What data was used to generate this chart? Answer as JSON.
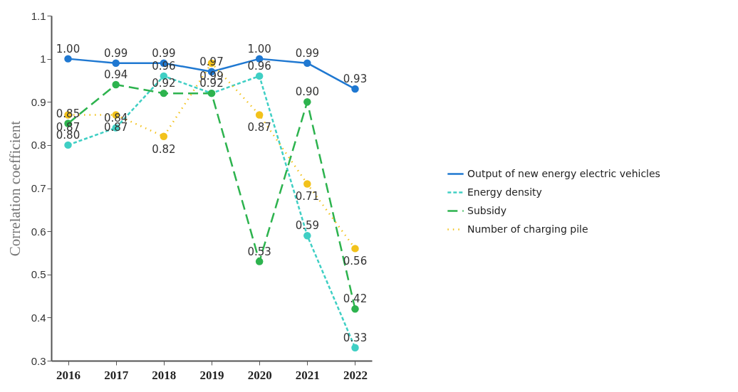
{
  "chart_data": {
    "type": "line",
    "ylabel": "Correlation coefficient",
    "categories": [
      "2016",
      "2017",
      "2018",
      "2019",
      "2020",
      "2021",
      "2022"
    ],
    "series": [
      {
        "name": "Output of new energy electric vehicles",
        "color": "#1f78d1",
        "line_style": "solid",
        "values": [
          1.0,
          0.99,
          0.99,
          0.97,
          1.0,
          0.99,
          0.93
        ],
        "value_labels": [
          "1.00",
          "0.99",
          "0.99",
          "0.97",
          "1.00",
          "0.99",
          "0.93"
        ]
      },
      {
        "name": "Energy density",
        "color": "#3fcfc4",
        "line_style": "dashed",
        "values": [
          0.8,
          0.84,
          0.96,
          0.92,
          0.96,
          0.59,
          0.33
        ],
        "value_labels": [
          "0.80",
          "0.84",
          "0.96",
          null,
          "0.96",
          "0.59",
          "0.33"
        ]
      },
      {
        "name": "Subsidy",
        "color": "#2db34e",
        "line_style": "dashed",
        "values": [
          0.85,
          0.94,
          0.92,
          0.92,
          0.53,
          0.9,
          0.42
        ],
        "value_labels": [
          "0.85",
          "0.94",
          "0.92",
          "0.92",
          "0.53",
          "0.90",
          "0.42"
        ]
      },
      {
        "name": "Number of charging pile",
        "color": "#f2c21b",
        "line_style": "dotted",
        "values": [
          0.87,
          0.87,
          0.82,
          0.99,
          0.87,
          0.71,
          0.56
        ],
        "value_labels": [
          "0.87",
          "0.87",
          "0.82",
          "0.99",
          "0.87",
          "0.71",
          "0.56"
        ]
      }
    ],
    "ylim": [
      0.3,
      1.1
    ],
    "yticks": [
      0.3,
      0.4,
      0.5,
      0.6,
      0.7,
      0.8,
      0.9,
      1,
      1.1
    ],
    "grid": false,
    "legend": "right",
    "marker": "circle"
  }
}
